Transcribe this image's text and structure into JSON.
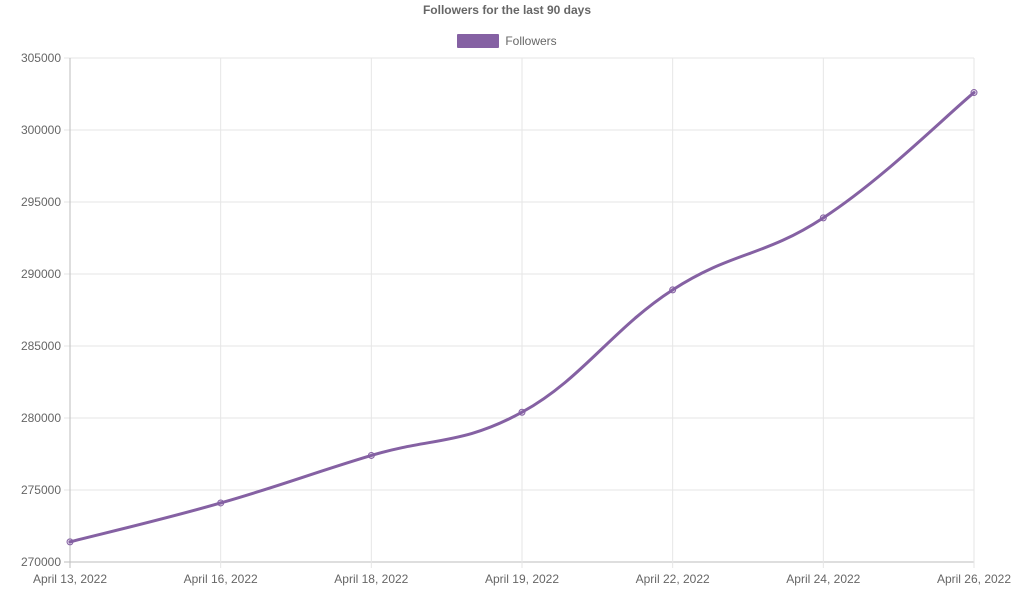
{
  "chart_data": {
    "type": "line",
    "title": "Followers for the last 90 days",
    "categories": [
      "April 13, 2022",
      "April 16, 2022",
      "April 18, 2022",
      "April 19, 2022",
      "April 22, 2022",
      "April 24, 2022",
      "April 26, 2022"
    ],
    "series": [
      {
        "name": "Followers",
        "values": [
          271400,
          274100,
          277400,
          280400,
          288900,
          293900,
          302600
        ],
        "color": "#8561a3"
      }
    ],
    "ylim": [
      270000,
      305000
    ],
    "yticks": [
      "270000",
      "275000",
      "280000",
      "285000",
      "290000",
      "295000",
      "300000",
      "305000"
    ],
    "xlabel": "",
    "ylabel": "",
    "grid": true,
    "legend_position": "top-center"
  }
}
